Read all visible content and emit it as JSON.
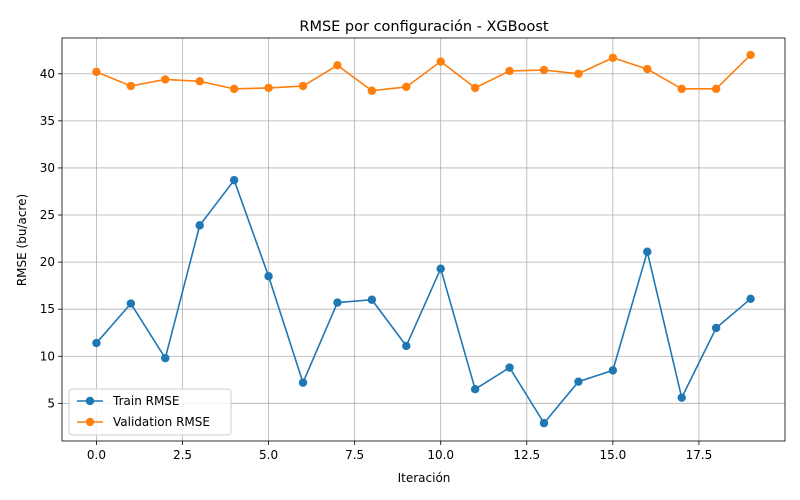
{
  "chart_data": {
    "type": "line",
    "title": "RMSE por configuración - XGBoost",
    "xlabel": "Iteración",
    "ylabel": "RMSE (bu/acre)",
    "x": [
      0,
      1,
      2,
      3,
      4,
      5,
      6,
      7,
      8,
      9,
      10,
      11,
      12,
      13,
      14,
      15,
      16,
      17,
      18,
      19
    ],
    "xlim": [
      -1.0,
      20.0
    ],
    "ylim": [
      1.0,
      43.8
    ],
    "xticks": [
      0.0,
      2.5,
      5.0,
      7.5,
      10.0,
      12.5,
      15.0,
      17.5
    ],
    "xtick_labels": [
      "0.0",
      "2.5",
      "5.0",
      "7.5",
      "10.0",
      "12.5",
      "15.0",
      "17.5"
    ],
    "yticks": [
      5,
      10,
      15,
      20,
      25,
      30,
      35,
      40
    ],
    "ytick_labels": [
      "5",
      "10",
      "15",
      "20",
      "25",
      "30",
      "35",
      "40"
    ],
    "grid": true,
    "legend_position": "lower-left",
    "series": [
      {
        "name": "Train RMSE",
        "color": "#1f77b4",
        "values": [
          11.4,
          15.6,
          9.8,
          23.9,
          28.7,
          18.5,
          7.2,
          15.7,
          16.0,
          11.1,
          19.3,
          6.5,
          8.8,
          2.9,
          7.3,
          8.5,
          21.1,
          5.6,
          13.0,
          16.1
        ]
      },
      {
        "name": "Validation RMSE",
        "color": "#ff7f0e",
        "values": [
          40.2,
          38.7,
          39.4,
          39.2,
          38.4,
          38.5,
          38.7,
          40.9,
          38.2,
          38.6,
          41.3,
          38.5,
          40.3,
          40.4,
          40.0,
          41.7,
          40.5,
          38.4,
          38.4,
          42.0
        ]
      }
    ]
  }
}
